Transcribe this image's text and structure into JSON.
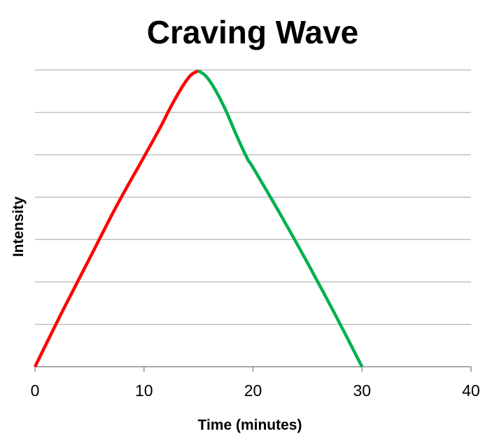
{
  "chart_data": {
    "type": "line",
    "title": "Craving Wave",
    "xlabel": "Time (minutes)",
    "ylabel": "Intensity",
    "xlim": [
      0,
      40
    ],
    "ylim": [
      0,
      7
    ],
    "xticks": [
      "0",
      "10",
      "20",
      "30",
      "40"
    ],
    "grid": "horizontal",
    "legend": "none",
    "series": [
      {
        "color": "#ff0000",
        "x": [
          0,
          2.5,
          5,
          7.5,
          10,
          11.5,
          12.5,
          13.5,
          14.3,
          15
        ],
        "y": [
          0,
          1.3,
          2.55,
          3.8,
          4.95,
          5.65,
          6.15,
          6.6,
          6.88,
          6.98
        ]
      },
      {
        "color": "#00b050",
        "x": [
          15,
          15.7,
          16.5,
          17.5,
          18.5,
          19.5,
          20,
          22.5,
          25,
          27.5,
          30
        ],
        "y": [
          6.98,
          6.85,
          6.55,
          6.05,
          5.45,
          4.9,
          4.7,
          3.6,
          2.45,
          1.25,
          0
        ]
      }
    ]
  }
}
